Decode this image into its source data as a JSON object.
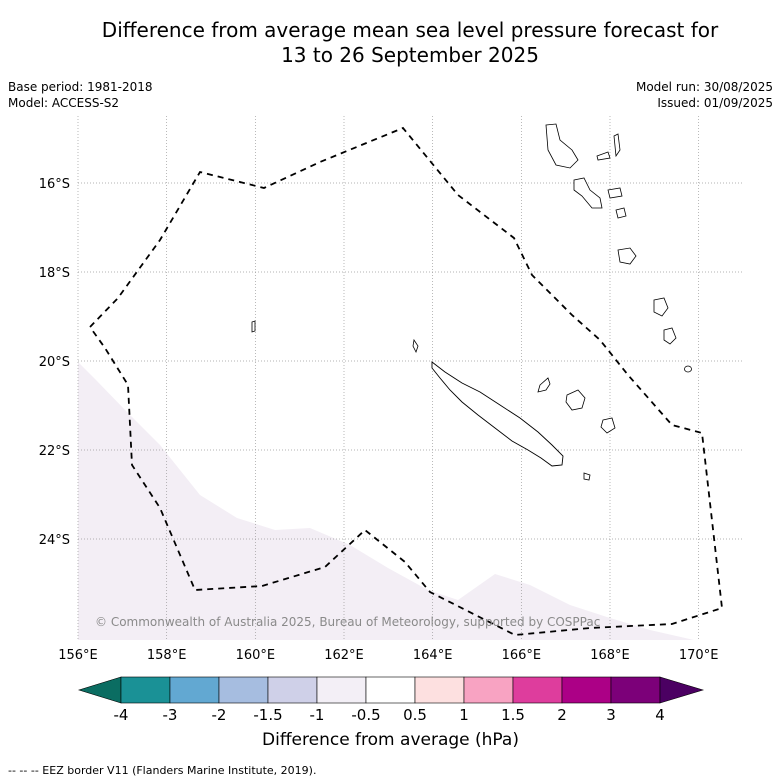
{
  "title_line1": "Difference from average mean sea level pressure forecast for",
  "title_line2": "13 to 26 September 2025",
  "left_meta": {
    "base_period": "Base period: 1981-2018",
    "model": "Model: ACCESS-S2"
  },
  "right_meta": {
    "model_run": "Model run: 30/08/2025",
    "issued": "Issued: 01/09/2025"
  },
  "map": {
    "lon_range": [
      156,
      171
    ],
    "lat_range": [
      -26.4,
      -14.5
    ],
    "lon_ticks": [
      "156°E",
      "158°E",
      "160°E",
      "162°E",
      "164°E",
      "166°E",
      "168°E",
      "170°E"
    ],
    "lat_ticks": [
      "16°S",
      "18°S",
      "20°S",
      "22°S",
      "24°S"
    ],
    "copyright": "© Commonwealth of Australia 2025, Bureau of Meteorology, supported by COSPPac",
    "anomaly_region_color": "#f3eef5",
    "eez_border_color": "#000000"
  },
  "colorbar": {
    "labels": [
      "-4",
      "-3",
      "-2",
      "-1.5",
      "-1",
      "-0.5",
      "0.5",
      "1",
      "1.5",
      "2",
      "3",
      "4"
    ],
    "colors": [
      "#1a9196",
      "#62a8d2",
      "#a6bde0",
      "#cfd0e8",
      "#f3eff6",
      "#ffffff",
      "#fde0e0",
      "#f8a3c2",
      "#de3d9d",
      "#ac0086",
      "#7c0079"
    ],
    "under_color": "#0b6d62",
    "over_color": "#4b0062",
    "title": "Difference from average (hPa)"
  },
  "footer": "--  --  -- EEZ border V11 (Flanders Marine Institute, 2019)."
}
